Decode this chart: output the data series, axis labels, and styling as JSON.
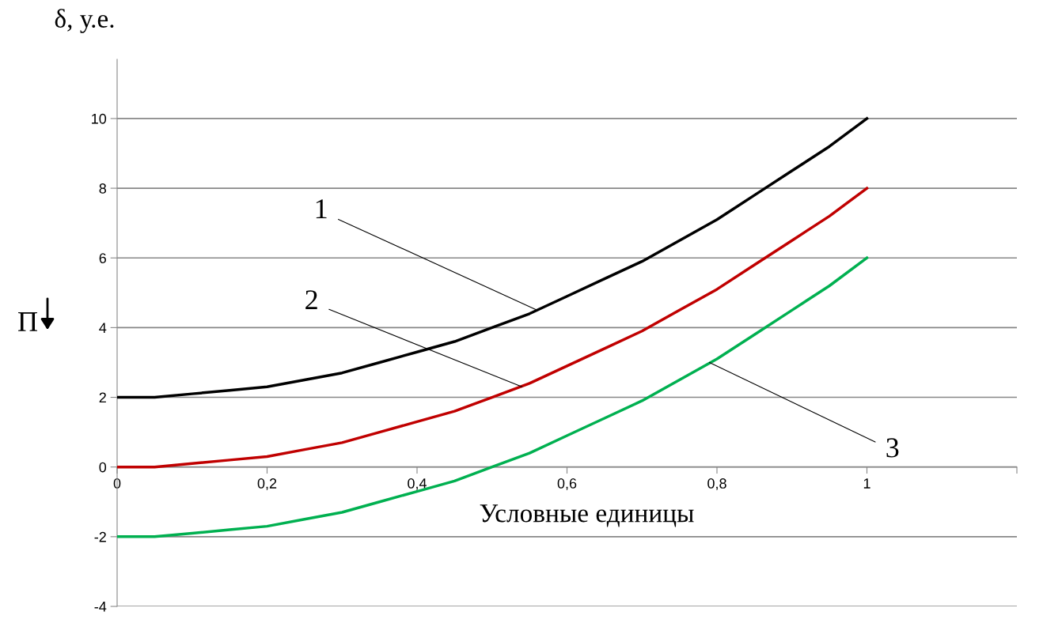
{
  "chart_data": {
    "type": "line",
    "ylabel": "δ, у.е.",
    "xlabel": "Условные единицы",
    "x": [
      0,
      0.05,
      0.1,
      0.15,
      0.2,
      0.25,
      0.3,
      0.35,
      0.4,
      0.45,
      0.5,
      0.55,
      0.6,
      0.65,
      0.7,
      0.75,
      0.8,
      0.85,
      0.9,
      0.95,
      1
    ],
    "series": [
      {
        "color": "#000000",
        "values": [
          2,
          2,
          2.1,
          2.2,
          2.3,
          2.5,
          2.7,
          3,
          3.3,
          3.6,
          4,
          4.4,
          4.9,
          5.4,
          5.9,
          6.5,
          7.1,
          7.8,
          8.5,
          9.2,
          10
        ]
      },
      {
        "color": "#c00000",
        "values": [
          0,
          0,
          0.1,
          0.2,
          0.3,
          0.5,
          0.7,
          1,
          1.3,
          1.6,
          2,
          2.4,
          2.9,
          3.4,
          3.9,
          4.5,
          5.1,
          5.8,
          6.5,
          7.2,
          8
        ]
      },
      {
        "color": "#00b050",
        "values": [
          -2,
          -2,
          -1.9,
          -1.8,
          -1.7,
          -1.5,
          -1.3,
          -1,
          -0.7,
          -0.4,
          0,
          0.4,
          0.9,
          1.4,
          1.9,
          2.5,
          3.1,
          3.8,
          4.5,
          5.2,
          6
        ]
      }
    ],
    "annotations": [
      {
        "text": "1",
        "x": 0.56,
        "y": 4.5
      },
      {
        "text": "2",
        "x": 0.54,
        "y": 2.3
      },
      {
        "text": "3",
        "x": 0.79,
        "y": 3.0
      },
      "П"
    ],
    "xlim": [
      0,
      1.2
    ],
    "ylim": [
      -4,
      11.7
    ],
    "xticks": [
      {
        "value": 0,
        "label": "0"
      },
      {
        "value": 0.2,
        "label": "0,2"
      },
      {
        "value": 0.4,
        "label": "0,4"
      },
      {
        "value": 0.6,
        "label": "0,6"
      },
      {
        "value": 0.8,
        "label": "0,8"
      },
      {
        "value": 1,
        "label": "1"
      },
      {
        "value": 1.2,
        "label": null
      }
    ],
    "yticks": [
      -4,
      -2,
      0,
      2,
      4,
      6,
      8,
      10
    ],
    "grid": "y",
    "legend": false,
    "marker": "none",
    "line_style": "solid"
  }
}
